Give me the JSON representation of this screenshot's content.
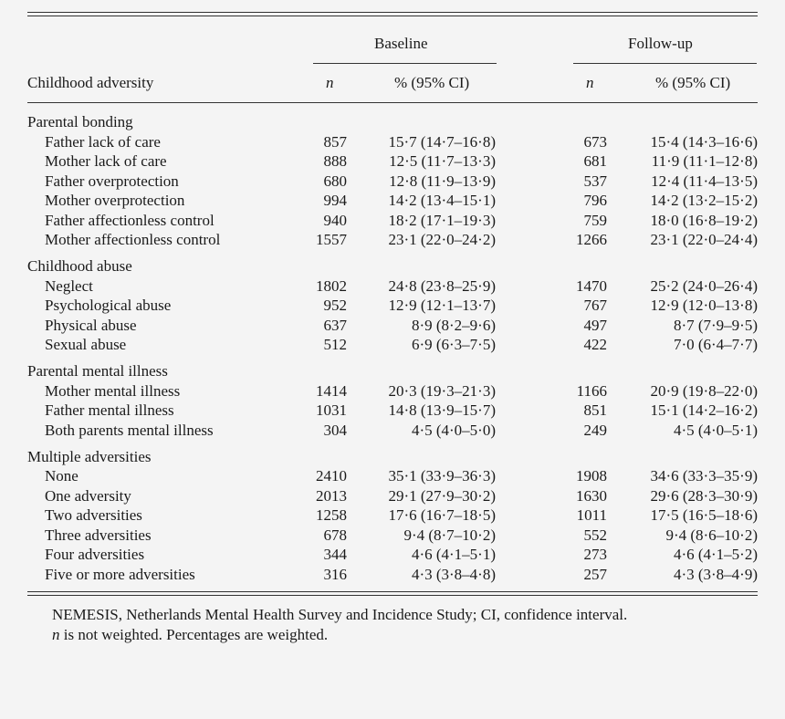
{
  "table": {
    "group_headers": {
      "baseline": "Baseline",
      "followup": "Follow-up"
    },
    "col_headers": {
      "label": "Childhood adversity",
      "n_baseline": "n",
      "ci_baseline": "% (95% CI)",
      "n_followup": "n",
      "ci_followup": "% (95% CI)"
    },
    "sections": [
      {
        "title": "Parental bonding",
        "rows": [
          {
            "label": "Father lack of care",
            "n1": "857",
            "p1": "15·7 (14·7–16·8)",
            "n2": "673",
            "p2": "15·4 (14·3–16·6)"
          },
          {
            "label": "Mother lack of care",
            "n1": "888",
            "p1": "12·5 (11·7–13·3)",
            "n2": "681",
            "p2": "11·9 (11·1–12·8)"
          },
          {
            "label": "Father overprotection",
            "n1": "680",
            "p1": "12·8 (11·9–13·9)",
            "n2": "537",
            "p2": "12·4 (11·4–13·5)"
          },
          {
            "label": "Mother overprotection",
            "n1": "994",
            "p1": "14·2 (13·4–15·1)",
            "n2": "796",
            "p2": "14·2 (13·2–15·2)"
          },
          {
            "label": "Father affectionless control",
            "n1": "940",
            "p1": "18·2 (17·1–19·3)",
            "n2": "759",
            "p2": "18·0 (16·8–19·2)"
          },
          {
            "label": "Mother affectionless control",
            "n1": "1557",
            "p1": "23·1 (22·0–24·2)",
            "n2": "1266",
            "p2": "23·1 (22·0–24·4)"
          }
        ]
      },
      {
        "title": "Childhood abuse",
        "rows": [
          {
            "label": "Neglect",
            "n1": "1802",
            "p1": "24·8 (23·8–25·9)",
            "n2": "1470",
            "p2": "25·2 (24·0–26·4)"
          },
          {
            "label": "Psychological abuse",
            "n1": "952",
            "p1": "12·9 (12·1–13·7)",
            "n2": "767",
            "p2": "12·9 (12·0–13·8)"
          },
          {
            "label": "Physical abuse",
            "n1": "637",
            "p1": "8·9 (8·2–9·6)",
            "n2": "497",
            "p2": "8·7 (7·9–9·5)"
          },
          {
            "label": "Sexual abuse",
            "n1": "512",
            "p1": "6·9 (6·3–7·5)",
            "n2": "422",
            "p2": "7·0 (6·4–7·7)"
          }
        ]
      },
      {
        "title": "Parental mental illness",
        "rows": [
          {
            "label": "Mother mental illness",
            "n1": "1414",
            "p1": "20·3 (19·3–21·3)",
            "n2": "1166",
            "p2": "20·9 (19·8–22·0)"
          },
          {
            "label": "Father mental illness",
            "n1": "1031",
            "p1": "14·8 (13·9–15·7)",
            "n2": "851",
            "p2": "15·1 (14·2–16·2)"
          },
          {
            "label": "Both parents mental illness",
            "n1": "304",
            "p1": "4·5 (4·0–5·0)",
            "n2": "249",
            "p2": "4·5 (4·0–5·1)"
          }
        ]
      },
      {
        "title": "Multiple adversities",
        "rows": [
          {
            "label": "None",
            "n1": "2410",
            "p1": "35·1 (33·9–36·3)",
            "n2": "1908",
            "p2": "34·6 (33·3–35·9)"
          },
          {
            "label": "One adversity",
            "n1": "2013",
            "p1": "29·1 (27·9–30·2)",
            "n2": "1630",
            "p2": "29·6 (28·3–30·9)"
          },
          {
            "label": "Two adversities",
            "n1": "1258",
            "p1": "17·6 (16·7–18·5)",
            "n2": "1011",
            "p2": "17·5 (16·5–18·6)"
          },
          {
            "label": "Three adversities",
            "n1": "678",
            "p1": "9·4 (8·7–10·2)",
            "n2": "552",
            "p2": "9·4 (8·6–10·2)"
          },
          {
            "label": "Four adversities",
            "n1": "344",
            "p1": "4·6 (4·1–5·1)",
            "n2": "273",
            "p2": "4·6 (4·1–5·2)"
          },
          {
            "label": "Five or more adversities",
            "n1": "316",
            "p1": "4·3 (3·8–4·8)",
            "n2": "257",
            "p2": "4·3 (3·8–4·9)"
          }
        ]
      }
    ],
    "footnote": {
      "line1": "NEMESIS, Netherlands Mental Health Survey and Incidence Study; CI, confidence interval.",
      "line2_italic": "n",
      "line2_rest": " is not weighted. Percentages are weighted."
    }
  }
}
